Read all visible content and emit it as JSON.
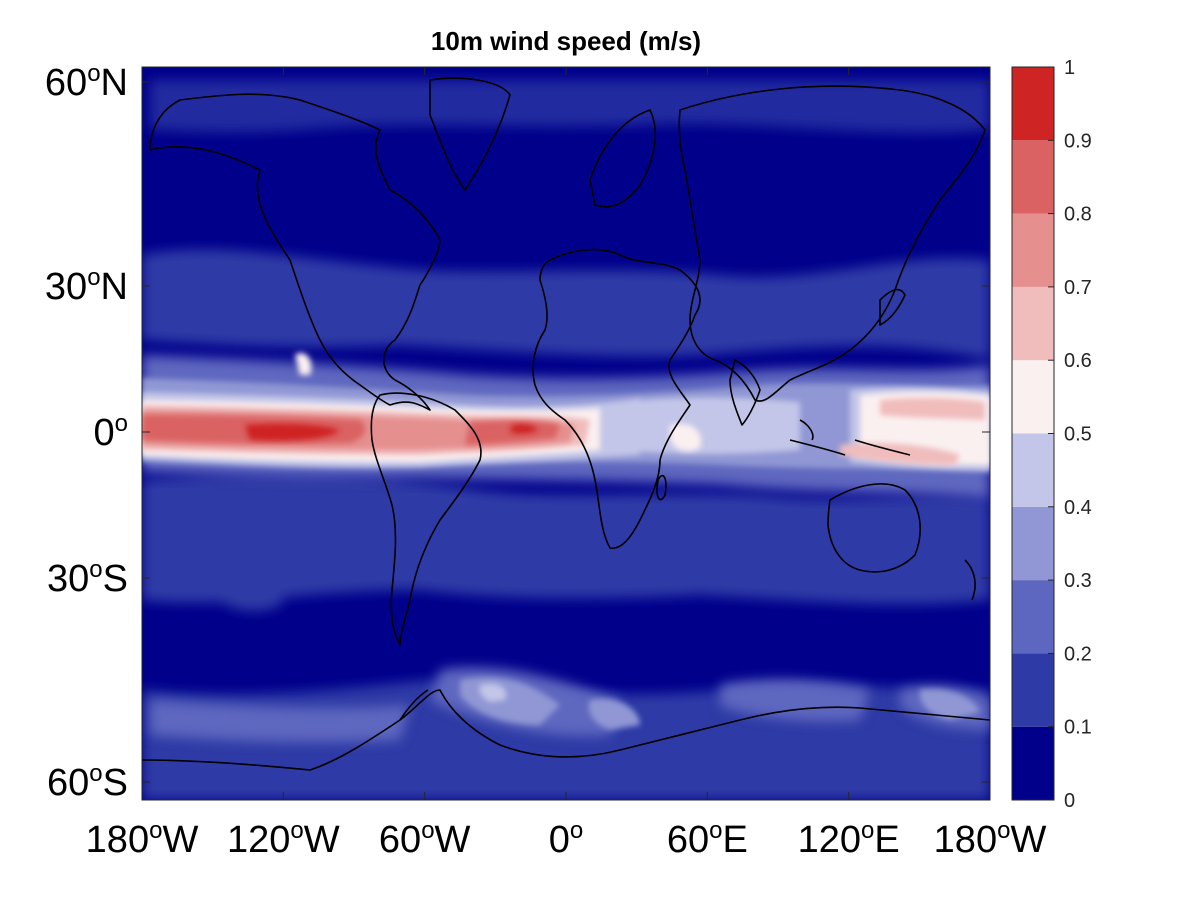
{
  "chart_data": {
    "type": "heatmap",
    "title": "10m wind speed (m/s)",
    "projection": "mercator",
    "x_ticks": [
      {
        "value": -180,
        "deg": "180",
        "sup": "o",
        "hemi": "W"
      },
      {
        "value": -120,
        "deg": "120",
        "sup": "o",
        "hemi": "W"
      },
      {
        "value": -60,
        "deg": "60",
        "sup": "o",
        "hemi": "W"
      },
      {
        "value": 0,
        "deg": "0",
        "sup": "o",
        "hemi": ""
      },
      {
        "value": 60,
        "deg": "60",
        "sup": "o",
        "hemi": "E"
      },
      {
        "value": 120,
        "deg": "120",
        "sup": "o",
        "hemi": "E"
      },
      {
        "value": 180,
        "deg": "180",
        "sup": "o",
        "hemi": "W"
      }
    ],
    "y_ticks": [
      {
        "value": 60,
        "deg": "60",
        "sup": "o",
        "hemi": "N"
      },
      {
        "value": 30,
        "deg": "30",
        "sup": "o",
        "hemi": "N"
      },
      {
        "value": 0,
        "deg": "0",
        "sup": "o",
        "hemi": ""
      },
      {
        "value": -30,
        "deg": "30",
        "sup": "o",
        "hemi": "S"
      },
      {
        "value": -60,
        "deg": "60",
        "sup": "o",
        "hemi": "S"
      }
    ],
    "colorbar": {
      "ticks": [
        "0",
        "0.1",
        "0.2",
        "0.3",
        "0.4",
        "0.5",
        "0.6",
        "0.7",
        "0.8",
        "0.9",
        "1"
      ],
      "range": [
        0,
        1
      ],
      "colors": [
        "#00008b",
        "#2e3ba6",
        "#5e67bf",
        "#9097d4",
        "#c3c6e8",
        "#fbf0f0",
        "#f0bcbc",
        "#e58f8f",
        "#da6262",
        "#cf2424"
      ]
    },
    "bands": [
      {
        "name": "itcz-pacific-atlantic",
        "lat": 0,
        "lon_from": -180,
        "lon_to": -5,
        "peak_level": 0.9
      },
      {
        "name": "itcz-indian",
        "lat": -2,
        "lon_from": 40,
        "lon_to": 100,
        "peak_level": 0.6
      },
      {
        "name": "itcz-west-pacific",
        "lat": 5,
        "lon_from": 135,
        "lon_to": 180,
        "peak_level": 0.8
      },
      {
        "name": "southern-ocean",
        "lat": -67,
        "lon_from": -180,
        "lon_to": 180,
        "peak_level": 0.5
      }
    ]
  }
}
